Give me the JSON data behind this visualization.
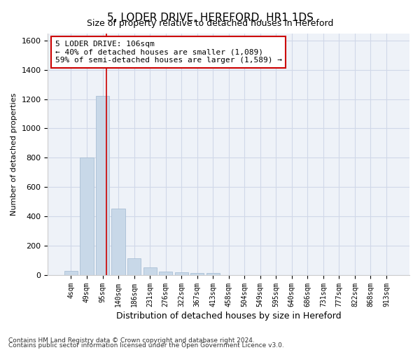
{
  "title1": "5, LODER DRIVE, HEREFORD, HR1 1DS",
  "title2": "Size of property relative to detached houses in Hereford",
  "xlabel": "Distribution of detached houses by size in Hereford",
  "ylabel": "Number of detached properties",
  "categories": [
    "4sqm",
    "49sqm",
    "95sqm",
    "140sqm",
    "186sqm",
    "231sqm",
    "276sqm",
    "322sqm",
    "367sqm",
    "413sqm",
    "458sqm",
    "504sqm",
    "549sqm",
    "595sqm",
    "640sqm",
    "686sqm",
    "731sqm",
    "777sqm",
    "822sqm",
    "868sqm",
    "913sqm"
  ],
  "values": [
    25,
    800,
    1220,
    450,
    115,
    50,
    20,
    15,
    10,
    10,
    0,
    0,
    0,
    0,
    0,
    0,
    0,
    0,
    0,
    0,
    0
  ],
  "bar_color": "#c8d8e8",
  "bar_edge_color": "#a0b8d0",
  "redline_index": 2.25,
  "annotation_text": "5 LODER DRIVE: 106sqm\n← 40% of detached houses are smaller (1,089)\n59% of semi-detached houses are larger (1,589) →",
  "annotation_box_color": "#ffffff",
  "annotation_border_color": "#cc0000",
  "ylim": [
    0,
    1650
  ],
  "yticks": [
    0,
    200,
    400,
    600,
    800,
    1000,
    1200,
    1400,
    1600
  ],
  "grid_color": "#d0d8e8",
  "bg_color": "#eef2f8",
  "footer1": "Contains HM Land Registry data © Crown copyright and database right 2024.",
  "footer2": "Contains public sector information licensed under the Open Government Licence v3.0."
}
